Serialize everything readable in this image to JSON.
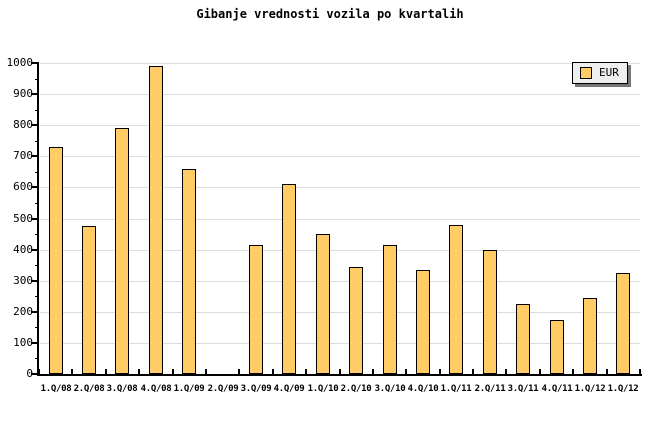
{
  "title": "Gibanje vrednosti vozila po kvartalih",
  "legend": {
    "label": "EUR"
  },
  "colors": {
    "background": "#FFFFFF",
    "bar_fill": "#FFCC66",
    "bar_border": "#000000",
    "gridline": "#DDDDDD",
    "axis": "#000000",
    "text": "#000000",
    "legend_bg": "#EEEEEE",
    "legend_border": "#000000",
    "legend_shadow": "#777777"
  },
  "chart_data": {
    "type": "bar",
    "title": "Gibanje vrednosti vozila po kvartalih",
    "categories": [
      "1.Q/08",
      "2.Q/08",
      "3.Q/08",
      "4.Q/08",
      "1.Q/09",
      "2.Q/09",
      "3.Q/09",
      "4.Q/09",
      "1.Q/10",
      "2.Q/10",
      "3.Q/10",
      "4.Q/10",
      "1.Q/11",
      "2.Q/11",
      "3.Q/11",
      "4.Q/11",
      "1.Q/12",
      "1.Q/12"
    ],
    "series": [
      {
        "name": "EUR",
        "values": [
          730,
          475,
          790,
          990,
          660,
          null,
          415,
          610,
          450,
          345,
          415,
          335,
          480,
          400,
          225,
          175,
          245,
          325
        ]
      }
    ],
    "xlabel": "",
    "ylabel": "",
    "ylim": [
      0,
      1000
    ],
    "ytick_step": 100,
    "y_minor_tick_step": 50,
    "yticks": [
      0,
      100,
      200,
      300,
      400,
      500,
      600,
      700,
      800,
      900,
      1000
    ],
    "grid": "horizontal",
    "legend_position": "top-right"
  }
}
